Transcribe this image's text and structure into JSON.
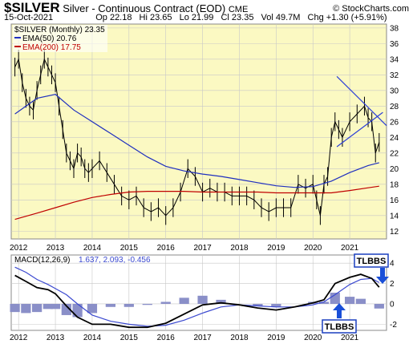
{
  "header": {
    "symbol": "$SILVER",
    "name": "Silver - Continuous Contract (EOD)",
    "exchange": "CME",
    "date": "15-Oct-2021",
    "watermark": "© StockCharts.com",
    "quote": {
      "op": "Op 22.18",
      "hi": "Hi 23.65",
      "lo": "Lo 21.99",
      "cl": "Cl 23.35",
      "vol": "Vol 49.7M",
      "chg": "Chg +1.30 (+5.91%)"
    }
  },
  "legend": {
    "price": "$SILVER (Monthly) 23.35",
    "ema50": "EMA(50) 20.76",
    "ema200": "EMA(200) 17.75",
    "macd_label": "MACD(12,26,9)",
    "macd_values": "1.637, 2.093, -0.456"
  },
  "annotations": {
    "top": "TLBBS",
    "bottom": "TLBBS"
  },
  "chart_data": [
    {
      "type": "line",
      "title": "$SILVER (Monthly)",
      "x_ticks": [
        "2012",
        "2013",
        "2014",
        "2015",
        "2016",
        "2017",
        "2018",
        "2019",
        "2020",
        "2021"
      ],
      "y_ticks": [
        12,
        14,
        16,
        18,
        20,
        22,
        24,
        26,
        28,
        30,
        32,
        34,
        36,
        38
      ],
      "ylim": [
        11,
        38.5
      ],
      "x_range": [
        2011.8,
        2022.0
      ],
      "grid": true,
      "colors": {
        "price": "#000000",
        "ema50": "#1f2fbf",
        "ema200": "#c00000",
        "trend": "#2c3fd8",
        "background": "#fbf9c2"
      },
      "series": [
        {
          "name": "$SILVER",
          "x": [
            2011.9,
            2012.0,
            2012.1,
            2012.2,
            2012.3,
            2012.4,
            2012.5,
            2012.6,
            2012.7,
            2012.8,
            2012.9,
            2013.0,
            2013.1,
            2013.2,
            2013.3,
            2013.4,
            2013.5,
            2013.6,
            2013.7,
            2013.8,
            2013.9,
            2014.0,
            2014.2,
            2014.4,
            2014.6,
            2014.8,
            2015.0,
            2015.2,
            2015.4,
            2015.6,
            2015.8,
            2016.0,
            2016.2,
            2016.4,
            2016.6,
            2016.8,
            2017.0,
            2017.2,
            2017.4,
            2017.6,
            2017.8,
            2018.0,
            2018.2,
            2018.4,
            2018.6,
            2018.8,
            2019.0,
            2019.2,
            2019.4,
            2019.6,
            2019.8,
            2020.0,
            2020.1,
            2020.2,
            2020.3,
            2020.4,
            2020.5,
            2020.6,
            2020.7,
            2020.8,
            2021.0,
            2021.2,
            2021.4,
            2021.5,
            2021.6,
            2021.7,
            2021.8
          ],
          "values": [
            33,
            34,
            31,
            29,
            28,
            27.5,
            30,
            32,
            34,
            33,
            32,
            31,
            28,
            25,
            22,
            21,
            20,
            22,
            21.5,
            20,
            19.5,
            20,
            21,
            19.5,
            18,
            16.5,
            16,
            16.5,
            15,
            14.5,
            15,
            14,
            15,
            17,
            20,
            19,
            17,
            17.5,
            17,
            17,
            16.5,
            16.5,
            16.5,
            16,
            15,
            14.5,
            15,
            15,
            15,
            18,
            17.5,
            18,
            16,
            14,
            18,
            19,
            24,
            26,
            25,
            24,
            26,
            27,
            28,
            26.5,
            26,
            22,
            23.35
          ]
        },
        {
          "name": "EMA(50)",
          "x": [
            2011.9,
            2012.5,
            2013.0,
            2013.5,
            2014.0,
            2014.5,
            2015.0,
            2015.5,
            2016.0,
            2016.5,
            2017.0,
            2017.5,
            2018.0,
            2018.5,
            2019.0,
            2019.5,
            2020.0,
            2020.5,
            2021.0,
            2021.5,
            2021.8
          ],
          "values": [
            27,
            29,
            29.5,
            27.5,
            26,
            24.5,
            23,
            21.5,
            20.3,
            19.7,
            19.3,
            19.0,
            18.6,
            18.2,
            17.8,
            17.6,
            17.7,
            18.4,
            19.5,
            20.4,
            20.76
          ]
        },
        {
          "name": "EMA(200)",
          "x": [
            2011.9,
            2012.5,
            2013.0,
            2013.5,
            2014.0,
            2014.5,
            2015.0,
            2015.5,
            2016.0,
            2016.5,
            2017.0,
            2017.5,
            2018.0,
            2018.5,
            2019.0,
            2019.5,
            2020.0,
            2020.5,
            2021.0,
            2021.5,
            2021.8
          ],
          "values": [
            13.5,
            14.3,
            15.0,
            15.7,
            16.3,
            16.7,
            17.0,
            17.1,
            17.1,
            17.1,
            17.0,
            17.0,
            17.0,
            17.0,
            16.9,
            16.9,
            16.9,
            16.9,
            17.2,
            17.55,
            17.75
          ]
        }
      ]
    },
    {
      "type": "line",
      "title": "MACD(12,26,9)",
      "x_ticks": [
        "2012",
        "2013",
        "2014",
        "2015",
        "2016",
        "2017",
        "2018",
        "2019",
        "2020",
        "2021"
      ],
      "y_ticks": [
        -2,
        0,
        2,
        4
      ],
      "ylim": [
        -2.6,
        4.8
      ],
      "x_range": [
        2011.8,
        2022.0
      ],
      "grid": true,
      "colors": {
        "macd": "#000000",
        "signal": "#3b49d0",
        "histogram": "#8a8fc8"
      },
      "series": [
        {
          "name": "MACD",
          "x": [
            2011.9,
            2012.2,
            2012.5,
            2012.8,
            2013.0,
            2013.3,
            2013.6,
            2014.0,
            2014.5,
            2015.0,
            2015.5,
            2016.0,
            2016.5,
            2017.0,
            2017.5,
            2018.0,
            2018.5,
            2019.0,
            2019.5,
            2020.0,
            2020.3,
            2020.6,
            2021.0,
            2021.3,
            2021.6,
            2021.8
          ],
          "values": [
            2.8,
            2.2,
            1.6,
            1.4,
            1.0,
            -0.2,
            -1.3,
            -2.0,
            -2.0,
            -2.3,
            -2.3,
            -1.9,
            -1.0,
            -0.1,
            0.1,
            -0.1,
            -0.4,
            -0.6,
            -0.3,
            0.1,
            0.4,
            2.0,
            2.6,
            2.9,
            2.5,
            1.637
          ]
        },
        {
          "name": "Signal",
          "x": [
            2011.9,
            2012.2,
            2012.5,
            2012.8,
            2013.0,
            2013.3,
            2013.6,
            2014.0,
            2014.5,
            2015.0,
            2015.5,
            2016.0,
            2016.5,
            2017.0,
            2017.5,
            2018.0,
            2018.5,
            2019.0,
            2019.5,
            2020.0,
            2020.3,
            2020.6,
            2021.0,
            2021.3,
            2021.6,
            2021.8
          ],
          "values": [
            3.6,
            3.1,
            2.4,
            1.9,
            1.5,
            0.9,
            0.0,
            -1.1,
            -1.7,
            -2.0,
            -2.2,
            -2.1,
            -1.6,
            -0.9,
            -0.3,
            -0.1,
            -0.2,
            -0.3,
            -0.3,
            -0.1,
            0.2,
            0.9,
            1.9,
            2.4,
            2.5,
            2.093
          ]
        },
        {
          "name": "Histogram",
          "x": [
            2011.9,
            2012.2,
            2012.5,
            2012.8,
            2013.0,
            2013.3,
            2013.6,
            2014.0,
            2014.5,
            2015.0,
            2015.5,
            2016.0,
            2016.5,
            2017.0,
            2017.5,
            2018.0,
            2018.5,
            2019.0,
            2019.5,
            2020.0,
            2020.3,
            2020.6,
            2021.0,
            2021.3,
            2021.6,
            2021.8
          ],
          "values": [
            -0.8,
            -0.9,
            -0.8,
            -0.5,
            -0.5,
            -1.1,
            -1.3,
            -0.9,
            -0.3,
            -0.3,
            -0.1,
            0.2,
            0.6,
            0.8,
            0.4,
            0.0,
            -0.2,
            -0.3,
            0.0,
            0.2,
            0.2,
            1.1,
            0.7,
            0.5,
            0.0,
            -0.456
          ]
        }
      ]
    }
  ]
}
